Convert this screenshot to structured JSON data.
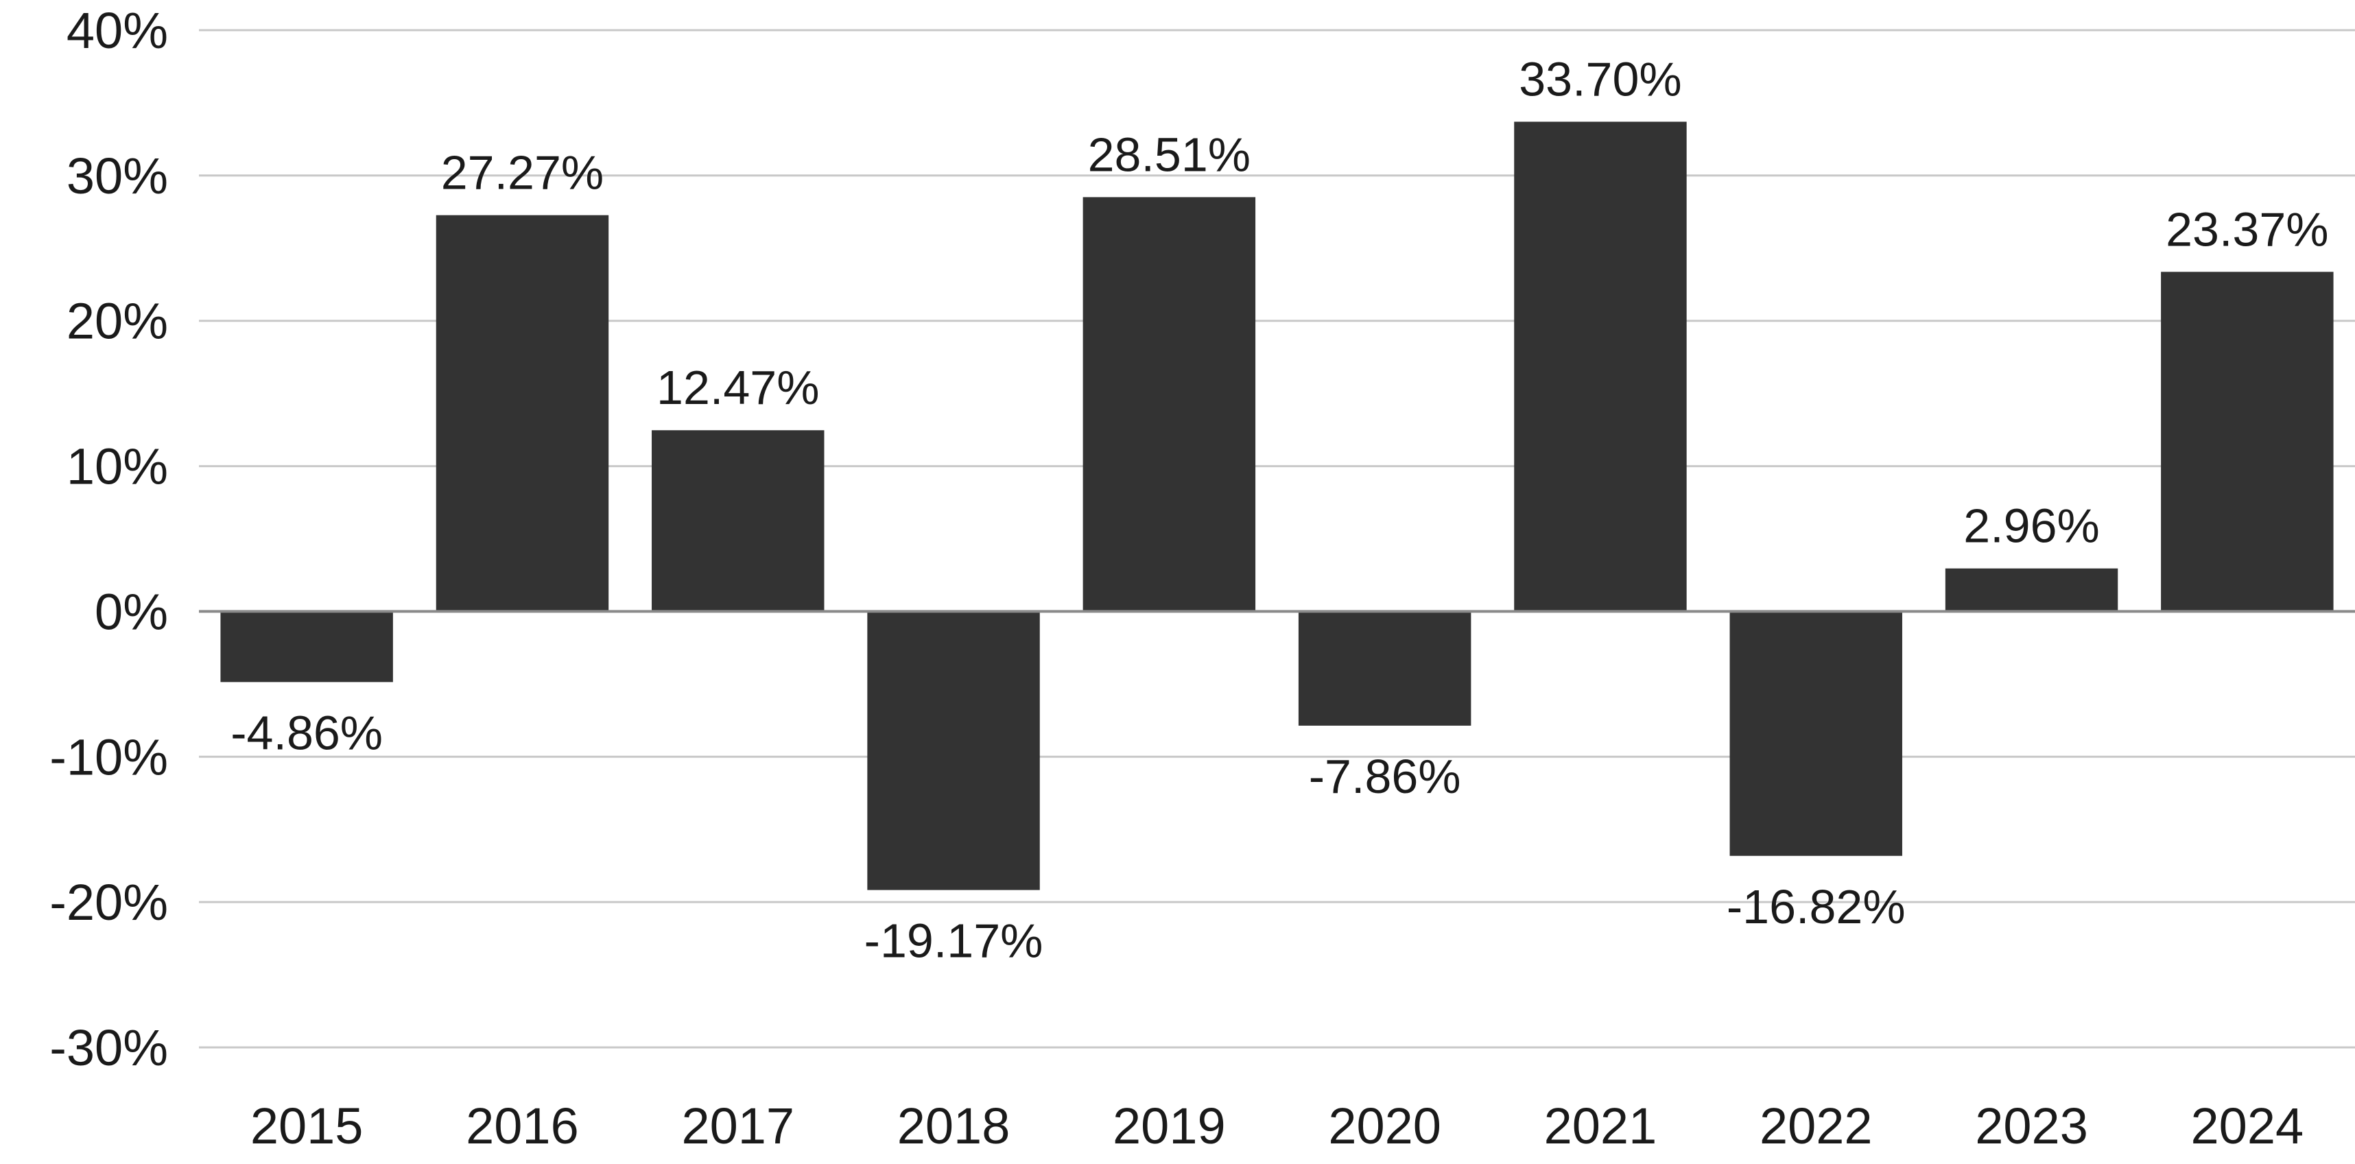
{
  "chart_data": {
    "type": "bar",
    "title": "",
    "xlabel": "",
    "ylabel": "",
    "categories": [
      "2015",
      "2016",
      "2017",
      "2018",
      "2019",
      "2020",
      "2021",
      "2022",
      "2023",
      "2024"
    ],
    "values": [
      -4.86,
      27.27,
      12.47,
      -19.17,
      28.51,
      -7.86,
      33.7,
      -16.82,
      2.96,
      23.37
    ],
    "data_labels": [
      "-4.86%",
      "27.27%",
      "12.47%",
      "-19.17%",
      "28.51%",
      "-7.86%",
      "33.70%",
      "-16.82%",
      "2.96%",
      "23.37%"
    ],
    "ylim": [
      -30,
      40
    ],
    "yticks": [
      40,
      30,
      20,
      10,
      0,
      -10,
      -20,
      -30
    ],
    "ytick_labels": [
      "40%",
      "30%",
      "20%",
      "10%",
      "0%",
      "-10%",
      "-20%",
      "-30%"
    ],
    "grid": true,
    "legend": "none",
    "colors": {
      "bar": "#333333",
      "grid": "#c8c8c8",
      "zero_line": "#8a8a8a",
      "text": "#1a1a1a"
    }
  }
}
